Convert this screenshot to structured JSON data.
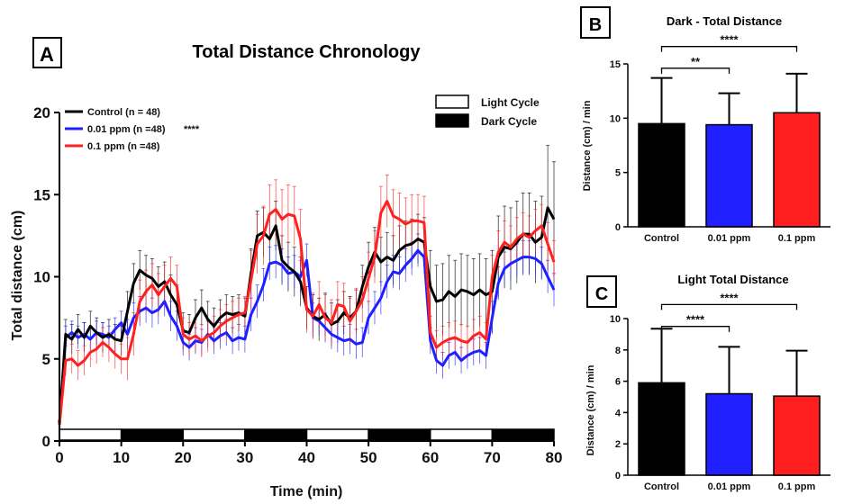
{
  "chart_data": [
    {
      "panel": "A",
      "type": "line",
      "title": "Total Distance Chronology",
      "xlabel": "Time (min)",
      "ylabel": "Total distance (cm)",
      "xlim": [
        0,
        80
      ],
      "ylim": [
        0,
        20
      ],
      "xticks": [
        "0",
        "10",
        "20",
        "30",
        "40",
        "50",
        "60",
        "70",
        "80"
      ],
      "yticks": [
        "0",
        "5",
        "10",
        "15",
        "20"
      ],
      "significance": "****",
      "cycle_legend": [
        {
          "name": "Light Cycle",
          "fill": "#ffffff"
        },
        {
          "name": "Dark Cycle",
          "fill": "#000000"
        }
      ],
      "cycles": [
        {
          "start": 0,
          "end": 10,
          "kind": "light"
        },
        {
          "start": 10,
          "end": 20,
          "kind": "dark"
        },
        {
          "start": 20,
          "end": 30,
          "kind": "light"
        },
        {
          "start": 30,
          "end": 40,
          "kind": "dark"
        },
        {
          "start": 40,
          "end": 50,
          "kind": "light"
        },
        {
          "start": 50,
          "end": 60,
          "kind": "dark"
        },
        {
          "start": 60,
          "end": 70,
          "kind": "light"
        },
        {
          "start": 70,
          "end": 80,
          "kind": "dark"
        }
      ],
      "series": [
        {
          "name": "Control (n = 48)",
          "color": "#000000",
          "x": [
            0,
            1,
            2,
            3,
            4,
            5,
            6,
            7,
            8,
            9,
            10,
            11,
            12,
            13,
            14,
            15,
            16,
            17,
            18,
            19,
            20,
            21,
            22,
            23,
            24,
            25,
            26,
            27,
            28,
            29,
            30,
            31,
            32,
            33,
            34,
            35,
            36,
            37,
            38,
            39,
            40,
            41,
            42,
            43,
            44,
            45,
            46,
            47,
            48,
            49,
            50,
            51,
            52,
            53,
            54,
            55,
            56,
            57,
            58,
            59,
            60,
            61,
            62,
            63,
            64,
            65,
            66,
            67,
            68,
            69,
            70,
            71,
            72,
            73,
            74,
            75,
            76,
            77,
            78,
            79,
            80
          ],
          "y": [
            1.0,
            6.5,
            6.2,
            6.8,
            6.3,
            7.0,
            6.6,
            6.3,
            6.5,
            6.2,
            6.1,
            7.9,
            9.6,
            10.4,
            10.1,
            9.9,
            9.4,
            9.7,
            8.9,
            8.3,
            6.7,
            6.6,
            7.5,
            8.1,
            7.4,
            7.0,
            7.5,
            7.8,
            7.7,
            7.8,
            7.6,
            10.2,
            12.5,
            12.7,
            12.3,
            13.1,
            11.0,
            10.6,
            10.3,
            9.7,
            8.1,
            7.6,
            7.4,
            7.7,
            7.1,
            7.3,
            7.8,
            7.5,
            7.9,
            9.4,
            10.6,
            11.5,
            10.9,
            11.2,
            11.0,
            11.6,
            11.9,
            12.0,
            12.3,
            12.1,
            9.4,
            8.5,
            8.6,
            9.1,
            8.8,
            9.2,
            9.1,
            8.9,
            9.2,
            8.9,
            9.1,
            11.2,
            11.8,
            11.7,
            12.1,
            12.6,
            12.6,
            12.1,
            12.4,
            14.2,
            13.5
          ],
          "err": [
            0.2,
            0.9,
            0.9,
            0.9,
            0.9,
            0.9,
            0.9,
            0.9,
            0.9,
            0.9,
            0.9,
            1.2,
            1.2,
            1.2,
            1.2,
            1.2,
            1.2,
            1.2,
            1.2,
            1.2,
            1.1,
            1.1,
            1.1,
            1.1,
            1.1,
            1.1,
            1.1,
            1.1,
            1.1,
            1.1,
            1.1,
            1.5,
            1.5,
            1.5,
            1.5,
            1.5,
            1.5,
            1.5,
            1.5,
            1.5,
            1.3,
            1.3,
            1.3,
            1.3,
            1.3,
            1.3,
            1.3,
            1.3,
            1.3,
            1.3,
            1.5,
            1.5,
            1.5,
            1.5,
            1.5,
            1.5,
            1.5,
            1.5,
            1.5,
            1.5,
            2.2,
            2.2,
            2.2,
            2.2,
            2.2,
            2.2,
            2.2,
            2.2,
            2.2,
            2.2,
            2.5,
            2.5,
            2.5,
            2.5,
            2.5,
            2.5,
            2.5,
            2.5,
            2.5,
            3.8,
            3.5
          ]
        },
        {
          "name": "0.01 ppm (n =48)",
          "color": "#1f1fff",
          "x": [
            0,
            1,
            2,
            3,
            4,
            5,
            6,
            7,
            8,
            9,
            10,
            11,
            12,
            13,
            14,
            15,
            16,
            17,
            18,
            19,
            20,
            21,
            22,
            23,
            24,
            25,
            26,
            27,
            28,
            29,
            30,
            31,
            32,
            33,
            34,
            35,
            36,
            37,
            38,
            39,
            40,
            41,
            42,
            43,
            44,
            45,
            46,
            47,
            48,
            49,
            50,
            51,
            52,
            53,
            54,
            55,
            56,
            57,
            58,
            59,
            60,
            61,
            62,
            63,
            64,
            65,
            66,
            67,
            68,
            69,
            70,
            71,
            72,
            73,
            74,
            75,
            76,
            77,
            78,
            79,
            80
          ],
          "y": [
            1.0,
            6.3,
            6.6,
            6.3,
            6.5,
            6.2,
            6.6,
            6.5,
            6.3,
            6.8,
            7.2,
            6.5,
            7.5,
            7.9,
            8.1,
            7.8,
            8.0,
            8.5,
            7.6,
            7.0,
            6.0,
            5.7,
            6.1,
            6.0,
            6.5,
            6.1,
            6.4,
            6.6,
            6.1,
            6.3,
            6.2,
            7.7,
            8.5,
            9.5,
            10.8,
            10.9,
            10.7,
            10.2,
            10.3,
            10.0,
            11.0,
            7.5,
            7.3,
            6.9,
            6.5,
            6.3,
            6.1,
            6.2,
            5.9,
            6.0,
            7.5,
            8.1,
            8.7,
            9.7,
            10.3,
            10.2,
            10.7,
            11.1,
            11.6,
            11.2,
            6.1,
            4.9,
            4.6,
            5.2,
            5.4,
            4.9,
            5.2,
            5.4,
            5.5,
            5.2,
            7.5,
            9.6,
            10.5,
            10.8,
            11.0,
            11.2,
            11.2,
            11.1,
            10.8,
            10.0,
            9.2
          ],
          "err": [
            0.2,
            0.7,
            0.7,
            0.7,
            0.7,
            0.7,
            0.7,
            0.7,
            0.7,
            0.7,
            0.7,
            0.9,
            0.9,
            0.9,
            0.9,
            0.9,
            0.9,
            0.9,
            0.9,
            0.9,
            0.8,
            0.8,
            0.8,
            0.8,
            0.8,
            0.8,
            0.8,
            0.8,
            0.8,
            0.8,
            0.8,
            1.0,
            1.0,
            1.0,
            1.0,
            1.0,
            1.0,
            1.0,
            1.0,
            1.0,
            1.0,
            0.9,
            0.9,
            0.9,
            0.9,
            0.9,
            0.9,
            0.9,
            0.9,
            0.9,
            1.0,
            1.0,
            1.0,
            1.0,
            1.0,
            1.0,
            1.0,
            1.0,
            1.0,
            1.0,
            0.8,
            0.8,
            0.8,
            0.8,
            0.8,
            0.8,
            0.8,
            0.8,
            0.8,
            0.8,
            1.0,
            1.0,
            1.0,
            1.0,
            1.0,
            1.0,
            1.0,
            1.0,
            1.0,
            1.0,
            1.0
          ]
        },
        {
          "name": "0.1 ppm (n =48)",
          "color": "#ff2020",
          "x": [
            0,
            1,
            2,
            3,
            4,
            5,
            6,
            7,
            8,
            9,
            10,
            11,
            12,
            13,
            14,
            15,
            16,
            17,
            18,
            19,
            20,
            21,
            22,
            23,
            24,
            25,
            26,
            27,
            28,
            29,
            30,
            31,
            32,
            33,
            34,
            35,
            36,
            37,
            38,
            39,
            40,
            41,
            42,
            43,
            44,
            45,
            46,
            47,
            48,
            49,
            50,
            51,
            52,
            53,
            54,
            55,
            56,
            57,
            58,
            59,
            60,
            61,
            62,
            63,
            64,
            65,
            66,
            67,
            68,
            69,
            70,
            71,
            72,
            73,
            74,
            75,
            76,
            77,
            78,
            79,
            80
          ],
          "y": [
            1.0,
            4.9,
            5.0,
            4.6,
            4.9,
            5.4,
            5.6,
            6.0,
            5.7,
            5.3,
            5.0,
            5.0,
            6.5,
            8.5,
            9.1,
            9.5,
            8.9,
            9.4,
            9.9,
            9.4,
            6.5,
            6.2,
            6.4,
            6.1,
            6.4,
            6.6,
            7.0,
            7.3,
            7.5,
            7.7,
            7.8,
            9.8,
            12.0,
            12.5,
            13.8,
            14.1,
            13.5,
            13.8,
            13.7,
            12.3,
            8.0,
            7.6,
            8.3,
            7.5,
            7.2,
            8.3,
            8.2,
            7.3,
            7.9,
            8.6,
            9.9,
            11.2,
            13.9,
            14.6,
            13.7,
            13.5,
            13.2,
            13.4,
            13.4,
            13.3,
            6.6,
            5.7,
            6.0,
            6.2,
            6.3,
            6.1,
            6.0,
            6.4,
            6.6,
            6.2,
            10.0,
            11.5,
            12.1,
            11.8,
            12.3,
            12.6,
            12.4,
            12.8,
            13.1,
            12.0,
            10.9
          ],
          "err": [
            0.2,
            0.9,
            0.9,
            0.9,
            0.9,
            0.9,
            0.9,
            0.9,
            0.9,
            0.9,
            0.9,
            1.3,
            1.3,
            1.3,
            1.3,
            1.3,
            1.3,
            1.3,
            1.3,
            1.3,
            1.0,
            1.0,
            1.0,
            1.0,
            1.0,
            1.0,
            1.0,
            1.0,
            1.0,
            1.0,
            1.0,
            1.8,
            1.8,
            1.8,
            1.8,
            1.8,
            1.8,
            1.8,
            1.8,
            1.8,
            1.4,
            1.4,
            1.4,
            1.4,
            1.4,
            1.4,
            1.4,
            1.4,
            1.4,
            1.4,
            1.6,
            1.6,
            1.6,
            1.6,
            1.6,
            1.6,
            1.6,
            1.6,
            1.6,
            1.6,
            1.0,
            1.0,
            1.0,
            1.0,
            1.0,
            1.0,
            1.0,
            1.0,
            1.0,
            1.0,
            1.3,
            1.3,
            1.3,
            1.3,
            1.3,
            1.3,
            1.3,
            1.3,
            1.3,
            1.3,
            1.3
          ]
        }
      ]
    },
    {
      "panel": "B",
      "type": "bar",
      "title": "Dark - Total Distance",
      "ylabel": "Distance (cm) / min",
      "ylim": [
        0,
        15
      ],
      "yticks": [
        "0",
        "5",
        "10",
        "15"
      ],
      "categories": [
        "Control",
        "0.01 ppm",
        "0.1 ppm"
      ],
      "values": [
        9.5,
        9.4,
        10.5
      ],
      "errors": [
        4.2,
        2.9,
        3.6
      ],
      "colors": [
        "#000000",
        "#1f1fff",
        "#ff1f1f"
      ],
      "significance": [
        {
          "from": 0,
          "to": 1,
          "label": "**",
          "y": 14.6
        },
        {
          "from": 0,
          "to": 2,
          "label": "****",
          "y": 16.6
        }
      ]
    },
    {
      "panel": "C",
      "type": "bar",
      "title": "Light Total Distance",
      "ylabel": "Distance (cm) / min",
      "ylim": [
        0,
        10
      ],
      "yticks": [
        "0",
        "2",
        "4",
        "6",
        "8",
        "10"
      ],
      "categories": [
        "Control",
        "0.01 ppm",
        "0.1 ppm"
      ],
      "values": [
        5.9,
        5.2,
        5.05
      ],
      "errors": [
        3.45,
        3.0,
        2.9
      ],
      "colors": [
        "#000000",
        "#1f1fff",
        "#ff1f1f"
      ],
      "significance": [
        {
          "from": 0,
          "to": 1,
          "label": "****",
          "y": 9.5
        },
        {
          "from": 0,
          "to": 2,
          "label": "****",
          "y": 10.9
        }
      ]
    }
  ]
}
